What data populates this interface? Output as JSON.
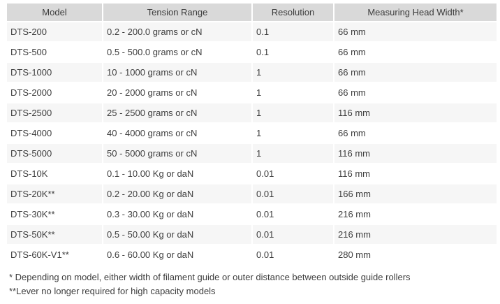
{
  "table": {
    "headers": [
      "Model",
      "Tension Range",
      "Resolution",
      "Measuring Head Width*"
    ],
    "rows": [
      [
        "DTS-200",
        "0.2 - 200.0 grams or cN",
        "0.1",
        "66 mm"
      ],
      [
        "DTS-500",
        "0.5 - 500.0 grams or cN",
        "0.1",
        "66 mm"
      ],
      [
        "DTS-1000",
        "10 - 1000 grams or cN",
        "1",
        "66 mm"
      ],
      [
        "DTS-2000",
        "20 - 2000 grams or cN",
        "1",
        "66 mm"
      ],
      [
        "DTS-2500",
        "25 - 2500 grams or cN",
        "1",
        "116 mm"
      ],
      [
        "DTS-4000",
        "40 - 4000 grams or cN",
        "1",
        "66 mm"
      ],
      [
        "DTS-5000",
        "50 - 5000 grams or cN",
        "1",
        "116 mm"
      ],
      [
        "DTS-10K",
        "0.1 - 10.00 Kg or daN",
        "0.01",
        "116 mm"
      ],
      [
        "DTS-20K**",
        "0.2 - 20.00 Kg or daN",
        "0.01",
        "166 mm"
      ],
      [
        "DTS-30K**",
        "0.3 - 30.00 Kg or daN",
        "0.01",
        "216 mm"
      ],
      [
        "DTS-50K**",
        "0.5 - 50.00 Kg or daN",
        "0.01",
        "216 mm"
      ],
      [
        "DTS-60K-V1**",
        "0.6 - 60.00 Kg or daN",
        "0.01",
        "280 mm"
      ]
    ]
  },
  "footnotes": [
    "* Depending on model, either width of filament guide or outer distance between outside guide rollers",
    "**Lever no longer required for high capacity models"
  ],
  "colors": {
    "header_bg": "#d9d9d9",
    "alt_row_bg": "#f6f6f6",
    "row_bg": "#ffffff",
    "text": "#3d3d3d",
    "separator": "#ffffff"
  }
}
